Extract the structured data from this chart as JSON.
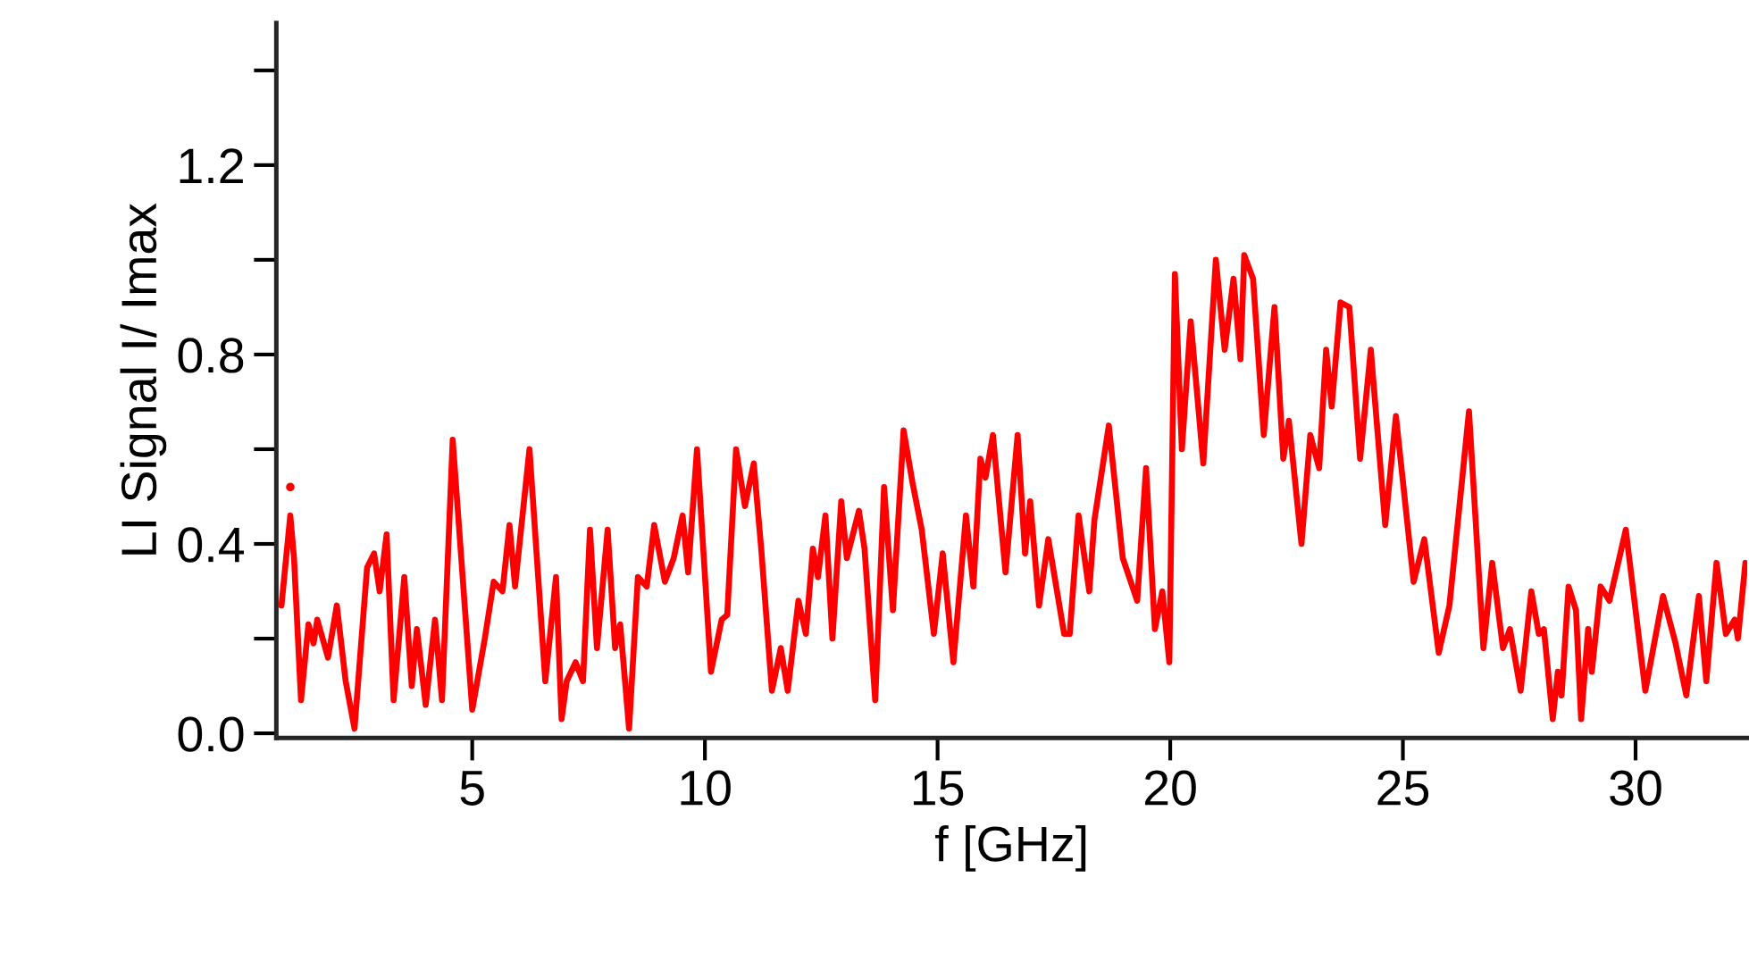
{
  "chart_data": {
    "type": "line",
    "xlabel": "f [GHz]",
    "ylabel": "LI Signal I/ Imax",
    "xlim": [
      0.79,
      32.4
    ],
    "ylim": [
      -0.01,
      1.5
    ],
    "xticks": [
      5,
      10,
      15,
      20,
      25,
      30
    ],
    "yticks": [
      {
        "value": 0,
        "label": "0.0"
      },
      {
        "value": 0.2,
        "label": null
      },
      {
        "value": 0.4,
        "label": "0.4"
      },
      {
        "value": 0.6,
        "label": null
      },
      {
        "value": 0.8,
        "label": "0.8"
      },
      {
        "value": 1.0,
        "label": null
      },
      {
        "value": 1.2,
        "label": "1.2"
      },
      {
        "value": 1.4,
        "label": null
      }
    ],
    "grid": false,
    "legend": false,
    "series": [
      {
        "color": "#ff0000",
        "line_style": "solid",
        "marker": "none",
        "x": [
          0.9,
          1.09,
          1.17,
          1.32,
          1.48,
          1.59,
          1.67,
          1.9,
          2.09,
          2.28,
          2.47,
          2.74,
          2.89,
          3.01,
          3.16,
          3.31,
          3.54,
          3.7,
          3.81,
          4.0,
          4.2,
          4.35,
          4.58,
          5.0,
          5.27,
          5.46,
          5.65,
          5.8,
          5.92,
          6.23,
          6.57,
          6.8,
          6.92,
          7.03,
          7.22,
          7.38,
          7.53,
          7.68,
          7.91,
          8.07,
          8.18,
          8.37,
          8.56,
          8.75,
          8.91,
          9.14,
          9.33,
          9.52,
          9.64,
          9.83,
          10.13,
          10.36,
          10.48,
          10.67,
          10.86,
          11.05,
          11.21,
          11.44,
          11.63,
          11.78,
          12.01,
          12.17,
          12.32,
          12.43,
          12.59,
          12.74,
          12.93,
          13.05,
          13.31,
          13.43,
          13.66,
          13.85,
          14.04,
          14.27,
          14.46,
          14.66,
          14.92,
          15.11,
          15.34,
          15.61,
          15.77,
          15.92,
          16.03,
          16.19,
          16.46,
          16.72,
          16.88,
          16.99,
          17.18,
          17.38,
          17.72,
          17.84,
          18.03,
          18.26,
          18.37,
          18.68,
          18.98,
          19.29,
          19.48,
          19.67,
          19.83,
          19.98,
          20.1,
          20.25,
          20.44,
          20.71,
          20.98,
          21.17,
          21.36,
          21.51,
          21.59,
          21.78,
          22.01,
          22.24,
          22.43,
          22.55,
          22.82,
          23.01,
          23.2,
          23.35,
          23.47,
          23.66,
          23.85,
          24.08,
          24.31,
          24.62,
          24.85,
          25.23,
          25.46,
          25.77,
          26.0,
          26.42,
          26.73,
          26.92,
          27.15,
          27.3,
          27.53,
          27.76,
          27.92,
          28.03,
          28.22,
          28.33,
          28.41,
          28.56,
          28.72,
          28.83,
          28.98,
          29.06,
          29.25,
          29.44,
          29.79,
          30.21,
          30.59,
          30.86,
          31.09,
          31.36,
          31.52,
          31.74,
          31.94,
          32.13,
          32.2,
          32.36
        ],
        "values": [
          0.27,
          0.46,
          0.37,
          0.07,
          0.23,
          0.19,
          0.24,
          0.16,
          0.27,
          0.11,
          0.01,
          0.35,
          0.38,
          0.3,
          0.42,
          0.07,
          0.33,
          0.1,
          0.22,
          0.06,
          0.24,
          0.07,
          0.62,
          0.05,
          0.2,
          0.32,
          0.3,
          0.44,
          0.31,
          0.6,
          0.11,
          0.33,
          0.03,
          0.11,
          0.15,
          0.11,
          0.43,
          0.18,
          0.43,
          0.18,
          0.23,
          0.01,
          0.33,
          0.31,
          0.44,
          0.32,
          0.37,
          0.46,
          0.34,
          0.6,
          0.13,
          0.24,
          0.25,
          0.6,
          0.48,
          0.57,
          0.39,
          0.09,
          0.18,
          0.09,
          0.28,
          0.21,
          0.39,
          0.33,
          0.46,
          0.2,
          0.49,
          0.37,
          0.47,
          0.39,
          0.07,
          0.52,
          0.26,
          0.64,
          0.53,
          0.43,
          0.21,
          0.38,
          0.15,
          0.46,
          0.31,
          0.58,
          0.54,
          0.63,
          0.34,
          0.63,
          0.38,
          0.49,
          0.27,
          0.41,
          0.21,
          0.21,
          0.46,
          0.3,
          0.45,
          0.65,
          0.37,
          0.28,
          0.56,
          0.22,
          0.3,
          0.15,
          0.97,
          0.6,
          0.87,
          0.57,
          1.0,
          0.81,
          0.96,
          0.79,
          1.01,
          0.96,
          0.63,
          0.9,
          0.58,
          0.66,
          0.4,
          0.63,
          0.56,
          0.81,
          0.69,
          0.91,
          0.9,
          0.58,
          0.81,
          0.44,
          0.67,
          0.32,
          0.41,
          0.17,
          0.27,
          0.68,
          0.18,
          0.36,
          0.18,
          0.22,
          0.09,
          0.3,
          0.21,
          0.22,
          0.03,
          0.13,
          0.08,
          0.31,
          0.26,
          0.03,
          0.22,
          0.13,
          0.31,
          0.28,
          0.43,
          0.09,
          0.29,
          0.19,
          0.08,
          0.29,
          0.11,
          0.36,
          0.21,
          0.24,
          0.2,
          0.36
        ]
      },
      {
        "type": "scatter",
        "color": "#ff0000",
        "marker": "circle",
        "x": [
          1.09
        ],
        "values": [
          0.52
        ]
      }
    ]
  }
}
